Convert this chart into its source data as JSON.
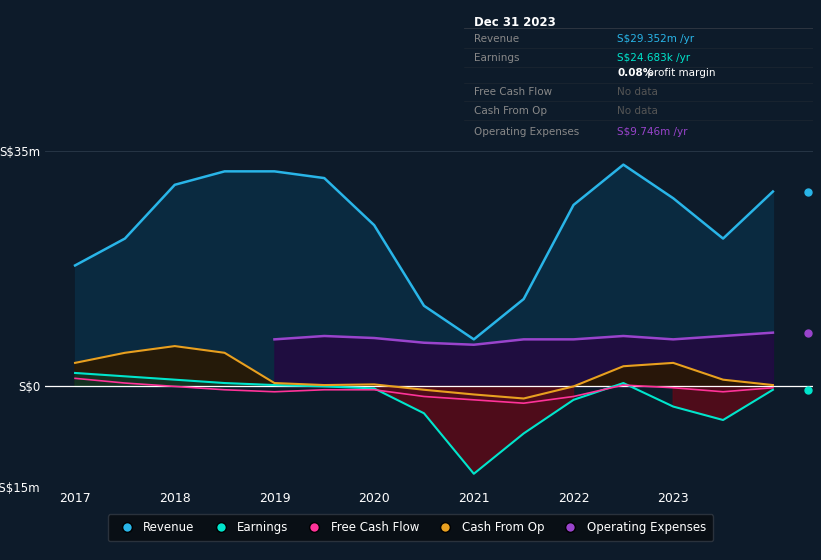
{
  "background_color": "#0d1b2a",
  "plot_bg_color": "#0d1b2a",
  "x_years": [
    2017,
    2017.5,
    2018,
    2018.5,
    2019,
    2019.5,
    2020,
    2020.5,
    2021,
    2021.5,
    2022,
    2022.5,
    2023,
    2023.5,
    2024
  ],
  "revenue": [
    18,
    22,
    30,
    32,
    32,
    31,
    24,
    12,
    7,
    13,
    27,
    33,
    28,
    22,
    29
  ],
  "earnings": [
    2.0,
    1.5,
    1.0,
    0.5,
    0.2,
    0.0,
    -0.3,
    -4,
    -13,
    -7,
    -2,
    0.5,
    -3,
    -5,
    -0.5
  ],
  "cash_from_op": [
    3.5,
    5.0,
    6.0,
    5.0,
    0.5,
    0.2,
    0.3,
    -0.5,
    -1.2,
    -1.8,
    0.0,
    3.0,
    3.5,
    1.0,
    0.2
  ],
  "op_exp_x": [
    2019,
    2019.5,
    2020,
    2020.5,
    2021,
    2021.5,
    2022,
    2022.5,
    2023,
    2023.5,
    2024
  ],
  "op_exp_y": [
    7.0,
    7.5,
    7.2,
    6.5,
    6.2,
    7.0,
    7.0,
    7.5,
    7.0,
    7.5,
    8.0
  ],
  "fcf_x": [
    2017,
    2017.5,
    2018,
    2018.5,
    2019,
    2019.5,
    2020,
    2020.5,
    2021,
    2021.5,
    2022,
    2022.5,
    2023,
    2023.5,
    2024
  ],
  "fcf_y": [
    1.2,
    0.5,
    0.0,
    -0.5,
    -0.8,
    -0.5,
    -0.5,
    -1.5,
    -2.0,
    -2.5,
    -1.5,
    0.2,
    -0.2,
    -0.8,
    -0.2
  ],
  "ylim": [
    -15,
    35
  ],
  "xlim": [
    2016.7,
    2024.4
  ],
  "revenue_color": "#29b5e8",
  "revenue_fill": "#0a2a40",
  "earnings_color": "#00e5cc",
  "earnings_fill_neg": "#4a1020",
  "earnings_fill_pos": "#103828",
  "cash_from_op_color": "#e8a020",
  "cash_from_op_fill_pos": "#2a1800",
  "op_exp_color": "#9944cc",
  "op_exp_fill": "#220a40",
  "fcf_color": "#ff3399",
  "legend_items": [
    "Revenue",
    "Earnings",
    "Free Cash Flow",
    "Cash From Op",
    "Operating Expenses"
  ],
  "legend_colors": [
    "#29b5e8",
    "#00e5cc",
    "#ff3399",
    "#e8a020",
    "#9944cc"
  ],
  "infobox_title": "Dec 31 2023",
  "infobox_rows": [
    {
      "label": "Revenue",
      "value": "S$29.352m /yr",
      "value_color": "#29b5e8",
      "label_color": "#888888"
    },
    {
      "label": "Earnings",
      "value": "S$24.683k /yr",
      "value_color": "#00e5cc",
      "label_color": "#888888"
    },
    {
      "label": "",
      "value": "0.08% profit margin",
      "value_color": "#ffffff",
      "label_color": "#888888",
      "bold_prefix": "0.08%"
    },
    {
      "label": "Free Cash Flow",
      "value": "No data",
      "value_color": "#555555",
      "label_color": "#888888"
    },
    {
      "label": "Cash From Op",
      "value": "No data",
      "value_color": "#555555",
      "label_color": "#888888"
    },
    {
      "label": "Operating Expenses",
      "value": "S$9.746m /yr",
      "value_color": "#9944cc",
      "label_color": "#888888"
    }
  ]
}
